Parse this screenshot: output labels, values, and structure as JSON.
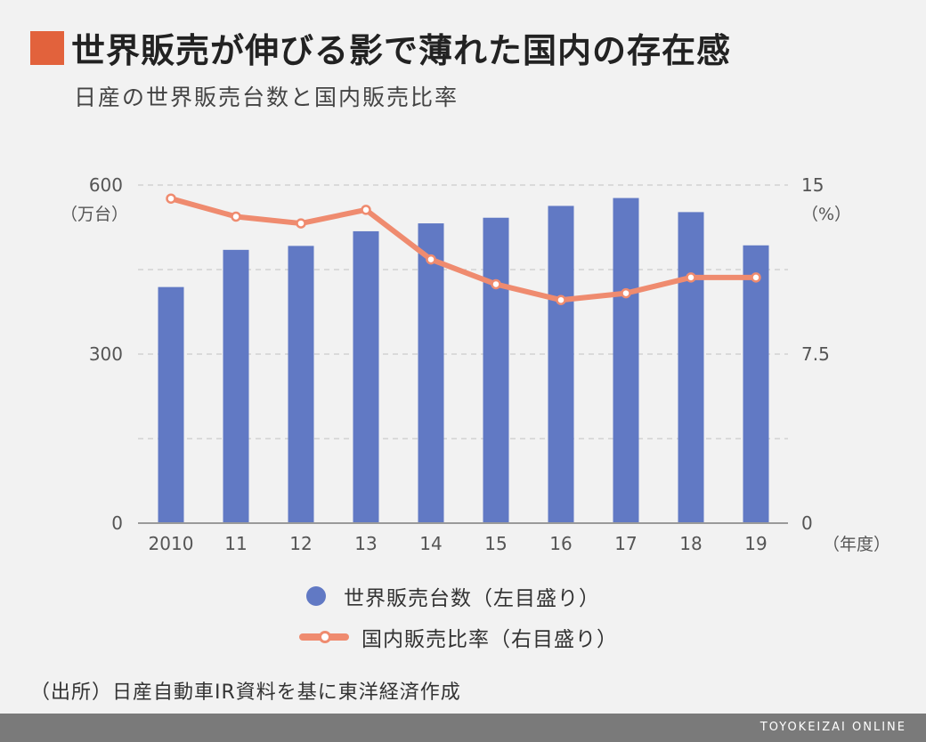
{
  "header": {
    "title": "世界販売が伸びる影で薄れた国内の存在感",
    "subtitle": "日産の世界販売台数と国内販売比率"
  },
  "colors": {
    "accent": "#e2623c",
    "bar": "#6179c4",
    "line": "#ef8b6f"
  },
  "chart_data": {
    "type": "bar+line",
    "categories": [
      "2010",
      "11",
      "12",
      "13",
      "14",
      "15",
      "16",
      "17",
      "18",
      "19"
    ],
    "series": [
      {
        "name": "世界販売台数（左目盛り）",
        "type": "bar",
        "axis": "left",
        "values": [
          419,
          485,
          492,
          518,
          532,
          542,
          563,
          577,
          552,
          493
        ]
      },
      {
        "name": "国内販売比率（右目盛り）",
        "type": "line",
        "axis": "right",
        "values": [
          14.4,
          13.6,
          13.3,
          13.9,
          11.7,
          10.6,
          9.9,
          10.2,
          10.9,
          10.9
        ]
      }
    ],
    "y_left": {
      "unit": "（万台）",
      "ylim": [
        0,
        600
      ],
      "ticks": [
        "0",
        "300",
        "600"
      ]
    },
    "y_right": {
      "unit": "（%）",
      "ylim": [
        0,
        15
      ],
      "ticks": [
        "0",
        "7.5",
        "15"
      ]
    },
    "xunit": "（年度）",
    "grid": true,
    "legend": "bottom"
  },
  "source": "（出所）日産自動車IR資料を基に東洋経済作成",
  "footer": "TOYOKEIZAI ONLINE"
}
